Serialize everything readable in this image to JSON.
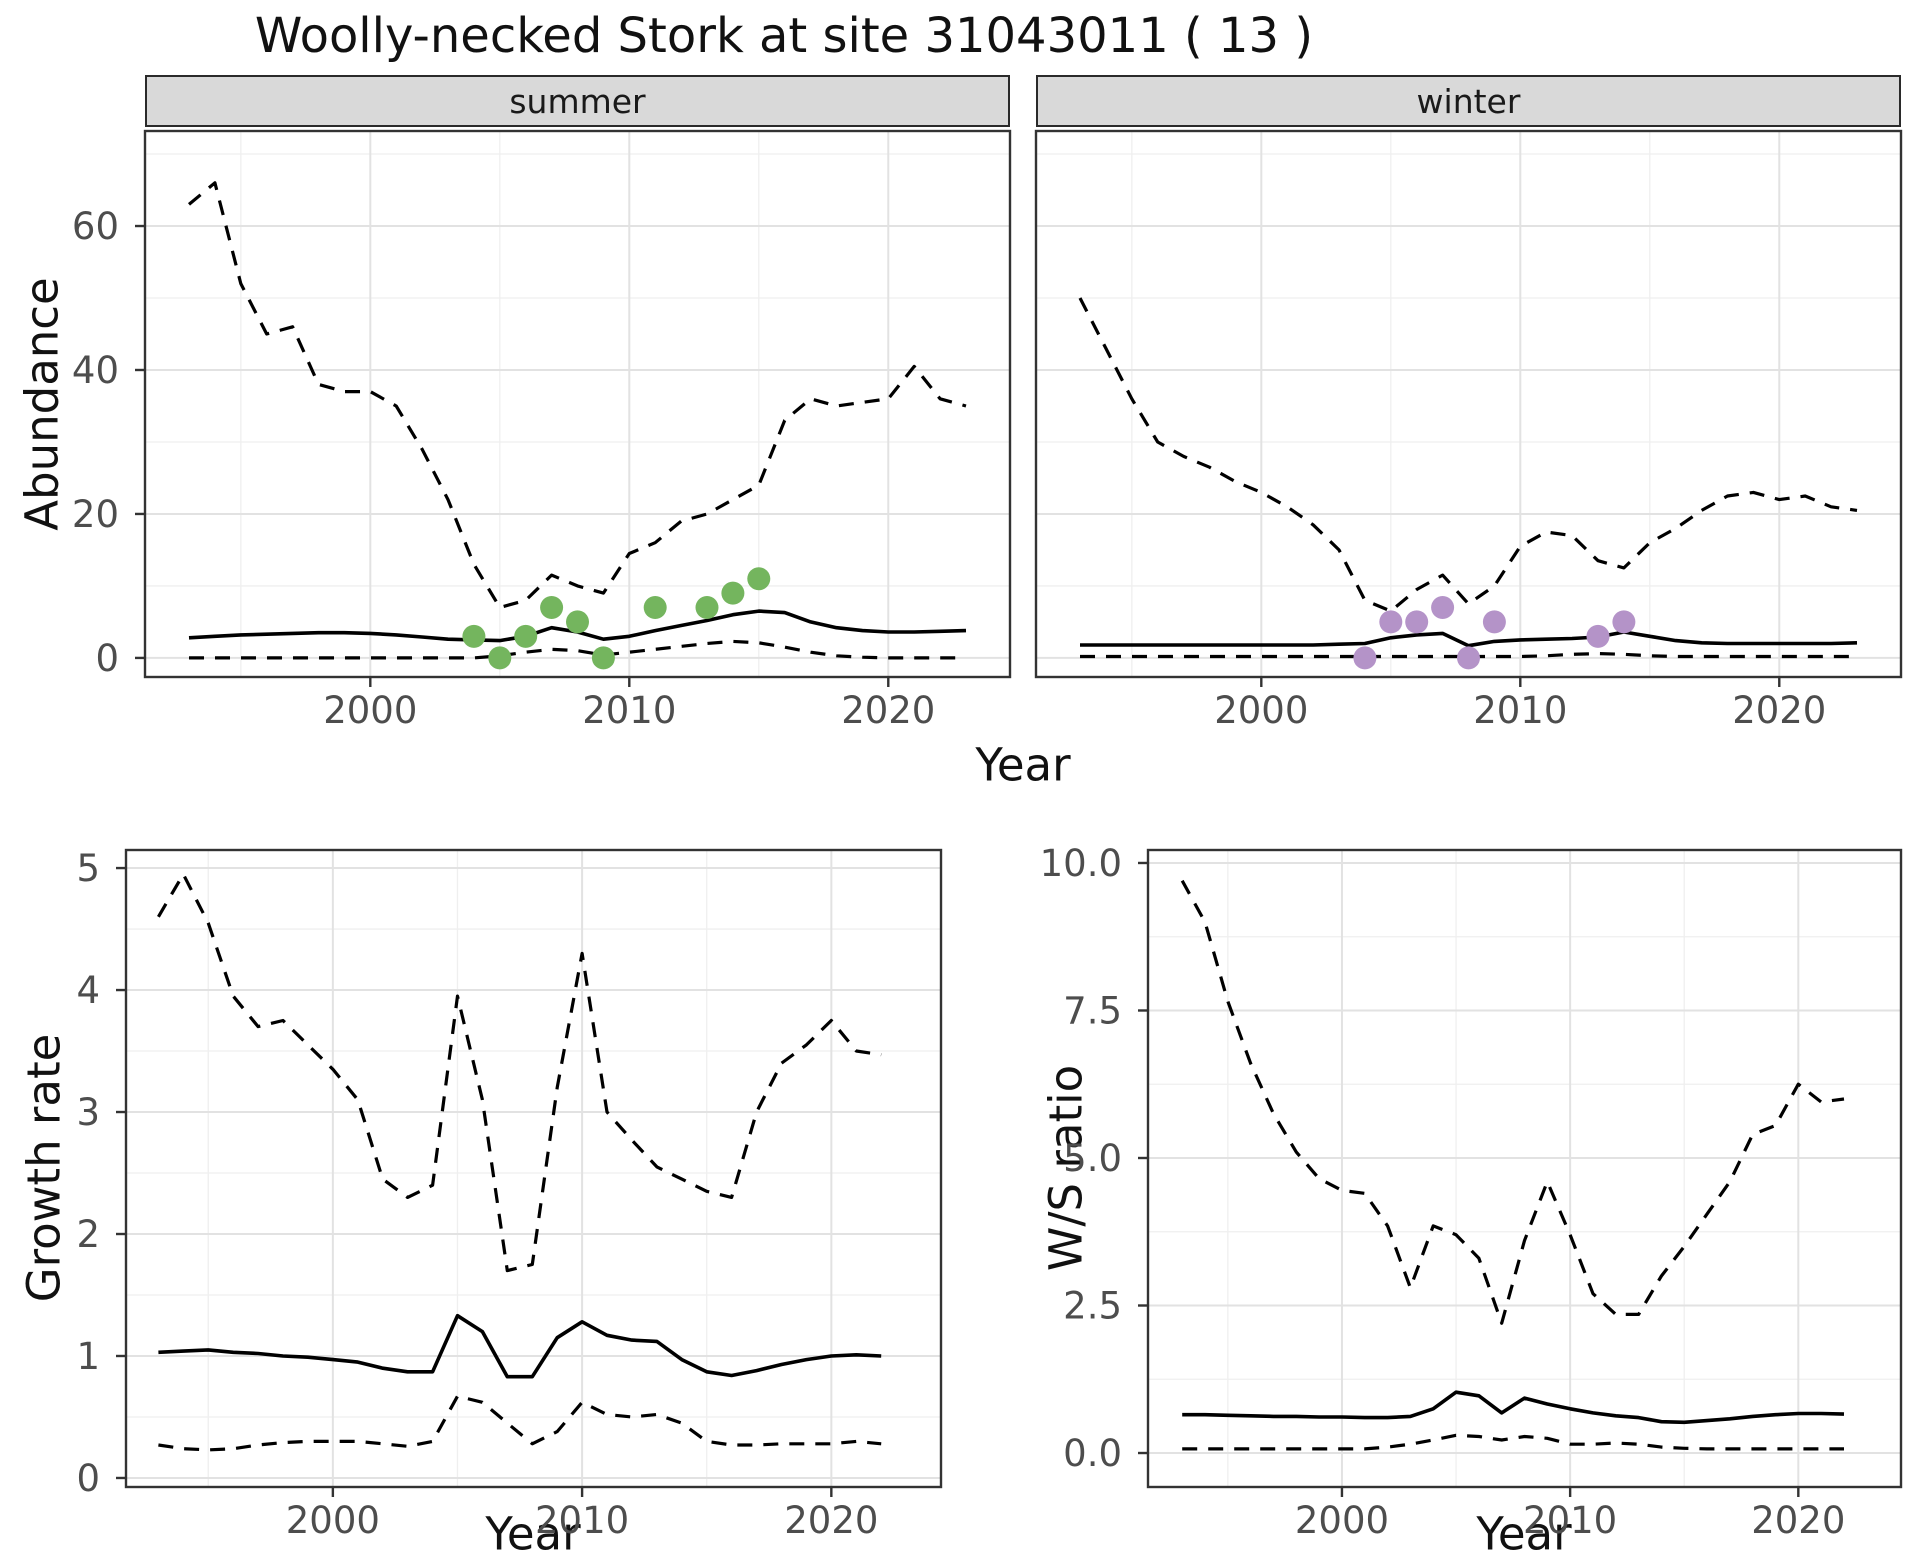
{
  "title": "Woolly-necked Stork at site 31043011 ( 13 )",
  "facets": [
    {
      "label": "summer"
    },
    {
      "label": "winter"
    }
  ],
  "axes": {
    "abundance_label": "Abundance",
    "year_label": "Year",
    "growth_label": "Growth rate",
    "ws_label": "W/S ratio"
  },
  "colors": {
    "line": "#000000",
    "summer_point": "#74b55e",
    "winter_point": "#b493c8",
    "strip_fill": "#d9d9d9",
    "grid_major": "#e2e2e2",
    "grid_minor": "#efefef",
    "tick_text": "#4d4d4d"
  },
  "chart_data": [
    {
      "id": "abundance_summer",
      "type": "line",
      "facet": "summer",
      "xlabel": "Year",
      "ylabel": "Abundance",
      "x": [
        1993,
        1994,
        1995,
        1996,
        1997,
        1998,
        1999,
        2000,
        2001,
        2002,
        2003,
        2004,
        2005,
        2006,
        2007,
        2008,
        2009,
        2010,
        2011,
        2012,
        2013,
        2014,
        2015,
        2016,
        2017,
        2018,
        2019,
        2020,
        2021,
        2022,
        2023
      ],
      "xlim": [
        1991.3,
        2024.7
      ],
      "ylim": [
        -2.65,
        73.2
      ],
      "xticks": {
        "values": [
          2000,
          2010,
          2020
        ],
        "labels": [
          "2000",
          "2010",
          "2020"
        ]
      },
      "yticks": {
        "values": [
          0,
          20,
          40,
          60
        ],
        "labels": [
          "0",
          "20",
          "40",
          "60"
        ]
      },
      "xminor": [
        1995,
        2005,
        2015
      ],
      "yminor": [
        10,
        30,
        50,
        70
      ],
      "series": [
        {
          "name": "upper_95_ci",
          "style": "dashed",
          "values": [
            63,
            66,
            52,
            45,
            46,
            38,
            37,
            37,
            35,
            29,
            22,
            13,
            7,
            8,
            11.5,
            10,
            9,
            14.5,
            16,
            19,
            20,
            22,
            24,
            33,
            36,
            35,
            35.5,
            36,
            40.5,
            36,
            35
          ]
        },
        {
          "name": "median",
          "style": "solid",
          "values": [
            2.8,
            3.0,
            3.2,
            3.3,
            3.4,
            3.5,
            3.5,
            3.4,
            3.2,
            2.9,
            2.6,
            2.5,
            2.4,
            3.0,
            4.2,
            3.6,
            2.6,
            3.0,
            3.8,
            4.5,
            5.2,
            6.0,
            6.5,
            6.3,
            5.0,
            4.2,
            3.8,
            3.6,
            3.6,
            3.7,
            3.8
          ]
        },
        {
          "name": "lower_95_ci",
          "style": "dashed",
          "values": [
            0,
            0,
            0,
            0,
            0,
            0,
            0,
            0,
            0,
            0,
            0,
            0,
            0.3,
            0.8,
            1.2,
            1.0,
            0.4,
            0.8,
            1.2,
            1.6,
            2.0,
            2.3,
            2.1,
            1.5,
            0.8,
            0.3,
            0.1,
            0,
            0,
            0,
            0
          ]
        }
      ],
      "points": {
        "name": "observed_count",
        "color": "#74b55e",
        "data": [
          [
            2004,
            3
          ],
          [
            2005,
            0
          ],
          [
            2006,
            3
          ],
          [
            2007,
            7
          ],
          [
            2008,
            5
          ],
          [
            2009,
            0
          ],
          [
            2011,
            7
          ],
          [
            2013,
            7
          ],
          [
            2014,
            9
          ],
          [
            2015,
            11
          ]
        ]
      }
    },
    {
      "id": "abundance_winter",
      "type": "line",
      "facet": "winter",
      "xlabel": "Year",
      "ylabel": "Abundance",
      "x": [
        1993,
        1994,
        1995,
        1996,
        1997,
        1998,
        1999,
        2000,
        2001,
        2002,
        2003,
        2004,
        2005,
        2006,
        2007,
        2008,
        2009,
        2010,
        2011,
        2012,
        2013,
        2014,
        2015,
        2016,
        2017,
        2018,
        2019,
        2020,
        2021,
        2022,
        2023
      ],
      "xlim": [
        1991.3,
        2024.7
      ],
      "ylim": [
        -2.65,
        73.2
      ],
      "xticks": {
        "values": [
          2000,
          2010,
          2020
        ],
        "labels": [
          "2000",
          "2010",
          "2020"
        ]
      },
      "yticks": {
        "values": [
          0,
          20,
          40,
          60
        ],
        "labels": [
          "0",
          "20",
          "40",
          "60"
        ]
      },
      "xminor": [
        1995,
        2005,
        2015
      ],
      "yminor": [
        10,
        30,
        50,
        70
      ],
      "series": [
        {
          "name": "upper_95_ci",
          "style": "dashed",
          "values": [
            50,
            43,
            36,
            30,
            28,
            26.5,
            24.5,
            23,
            21,
            18.5,
            15,
            8,
            6.5,
            9.5,
            11.5,
            7.5,
            10,
            15.5,
            17.5,
            17,
            13.5,
            12.5,
            16,
            18,
            20.5,
            22.5,
            23,
            22,
            22.5,
            21,
            20.5
          ]
        },
        {
          "name": "median",
          "style": "solid",
          "values": [
            1.8,
            1.8,
            1.8,
            1.8,
            1.8,
            1.8,
            1.8,
            1.8,
            1.8,
            1.8,
            1.9,
            2.0,
            2.8,
            3.2,
            3.4,
            1.7,
            2.3,
            2.5,
            2.6,
            2.7,
            2.9,
            3.6,
            3.0,
            2.4,
            2.1,
            2.0,
            2.0,
            2.0,
            2.0,
            2.0,
            2.1
          ]
        },
        {
          "name": "lower_95_ci",
          "style": "dashed",
          "values": [
            0.2,
            0.2,
            0.2,
            0.2,
            0.2,
            0.2,
            0.2,
            0.2,
            0.2,
            0.2,
            0.2,
            0.2,
            0.2,
            0.2,
            0.2,
            0.2,
            0.2,
            0.2,
            0.3,
            0.5,
            0.6,
            0.5,
            0.3,
            0.2,
            0.2,
            0.2,
            0.2,
            0.2,
            0.2,
            0.2,
            0.2
          ]
        }
      ],
      "points": {
        "name": "observed_count",
        "color": "#b493c8",
        "data": [
          [
            2004,
            0
          ],
          [
            2005,
            5
          ],
          [
            2006,
            5
          ],
          [
            2007,
            7
          ],
          [
            2008,
            0
          ],
          [
            2009,
            5
          ],
          [
            2013,
            3
          ],
          [
            2014,
            5
          ]
        ]
      }
    },
    {
      "id": "growth_rate",
      "type": "line",
      "xlabel": "Year",
      "ylabel": "Growth rate",
      "x": [
        1993,
        1994,
        1995,
        1996,
        1997,
        1998,
        1999,
        2000,
        2001,
        2002,
        2003,
        2004,
        2005,
        2006,
        2007,
        2008,
        2009,
        2010,
        2011,
        2012,
        2013,
        2014,
        2015,
        2016,
        2017,
        2018,
        2019,
        2020,
        2021,
        2022
      ],
      "xlim": [
        1991.7,
        2024.4
      ],
      "ylim": [
        -0.074,
        5.148
      ],
      "xticks": {
        "values": [
          2000,
          2010,
          2020
        ],
        "labels": [
          "2000",
          "2010",
          "2020"
        ]
      },
      "yticks": {
        "values": [
          0,
          1,
          2,
          3,
          4,
          5
        ],
        "labels": [
          "0",
          "1",
          "2",
          "3",
          "4",
          "5"
        ]
      },
      "xminor": [
        1995,
        2005,
        2015
      ],
      "yminor": [
        0.5,
        1.5,
        2.5,
        3.5,
        4.5
      ],
      "series": [
        {
          "name": "upper_95_ci",
          "style": "dashed",
          "values": [
            4.6,
            4.95,
            4.55,
            3.95,
            3.7,
            3.75,
            3.55,
            3.35,
            3.1,
            2.45,
            2.3,
            2.4,
            3.95,
            3.1,
            1.7,
            1.75,
            3.2,
            4.3,
            3.0,
            2.77,
            2.55,
            2.45,
            2.35,
            2.3,
            3.0,
            3.4,
            3.55,
            3.75,
            3.5,
            3.47
          ]
        },
        {
          "name": "median",
          "style": "solid",
          "values": [
            1.03,
            1.04,
            1.05,
            1.03,
            1.02,
            1.0,
            0.99,
            0.97,
            0.95,
            0.9,
            0.87,
            0.87,
            1.33,
            1.2,
            0.83,
            0.83,
            1.15,
            1.28,
            1.17,
            1.13,
            1.12,
            0.97,
            0.87,
            0.84,
            0.88,
            0.93,
            0.97,
            1.0,
            1.01,
            1.0
          ]
        },
        {
          "name": "lower_95_ci",
          "style": "dashed",
          "values": [
            0.27,
            0.24,
            0.23,
            0.24,
            0.27,
            0.29,
            0.3,
            0.3,
            0.3,
            0.28,
            0.26,
            0.3,
            0.67,
            0.62,
            0.45,
            0.28,
            0.38,
            0.62,
            0.52,
            0.5,
            0.52,
            0.45,
            0.3,
            0.27,
            0.27,
            0.28,
            0.28,
            0.28,
            0.3,
            0.28
          ]
        }
      ]
    },
    {
      "id": "ws_ratio",
      "type": "line",
      "xlabel": "Year",
      "ylabel": "W/S ratio",
      "x": [
        1993,
        1994,
        1995,
        1996,
        1997,
        1998,
        1999,
        2000,
        2001,
        2002,
        2003,
        2004,
        2005,
        2006,
        2007,
        2008,
        2009,
        2010,
        2011,
        2012,
        2013,
        2014,
        2015,
        2016,
        2017,
        2018,
        2019,
        2020,
        2021,
        2022
      ],
      "xlim": [
        1991.5,
        2024.5
      ],
      "ylim": [
        -0.576,
        10.22
      ],
      "xticks": {
        "values": [
          2000,
          2010,
          2020
        ],
        "labels": [
          "2000",
          "2010",
          "2020"
        ]
      },
      "yticks": {
        "values": [
          0,
          2.5,
          5,
          7.5,
          10
        ],
        "labels": [
          "0.0",
          "2.5",
          "5.0",
          "7.5",
          "10.0"
        ]
      },
      "xminor": [
        1995,
        2005,
        2015
      ],
      "yminor": [
        1.25,
        3.75,
        6.25,
        8.75
      ],
      "series": [
        {
          "name": "upper_95_ci",
          "style": "dashed",
          "values": [
            9.7,
            9.0,
            7.65,
            6.6,
            5.75,
            5.1,
            4.65,
            4.45,
            4.4,
            3.85,
            2.8,
            3.85,
            3.7,
            3.3,
            2.2,
            3.6,
            4.6,
            3.7,
            2.7,
            2.35,
            2.35,
            3.0,
            3.5,
            4.05,
            4.6,
            5.4,
            5.55,
            6.25,
            5.95,
            6.0
          ]
        },
        {
          "name": "median",
          "style": "solid",
          "values": [
            0.65,
            0.65,
            0.64,
            0.63,
            0.62,
            0.62,
            0.61,
            0.61,
            0.6,
            0.6,
            0.62,
            0.75,
            1.03,
            0.97,
            0.68,
            0.93,
            0.83,
            0.75,
            0.68,
            0.63,
            0.6,
            0.53,
            0.52,
            0.55,
            0.58,
            0.62,
            0.65,
            0.67,
            0.67,
            0.66
          ]
        },
        {
          "name": "lower_95_ci",
          "style": "dashed",
          "values": [
            0.07,
            0.07,
            0.07,
            0.07,
            0.07,
            0.07,
            0.07,
            0.07,
            0.07,
            0.1,
            0.15,
            0.22,
            0.3,
            0.28,
            0.22,
            0.28,
            0.25,
            0.15,
            0.15,
            0.17,
            0.15,
            0.1,
            0.08,
            0.07,
            0.07,
            0.07,
            0.07,
            0.07,
            0.07,
            0.07
          ]
        }
      ]
    }
  ]
}
